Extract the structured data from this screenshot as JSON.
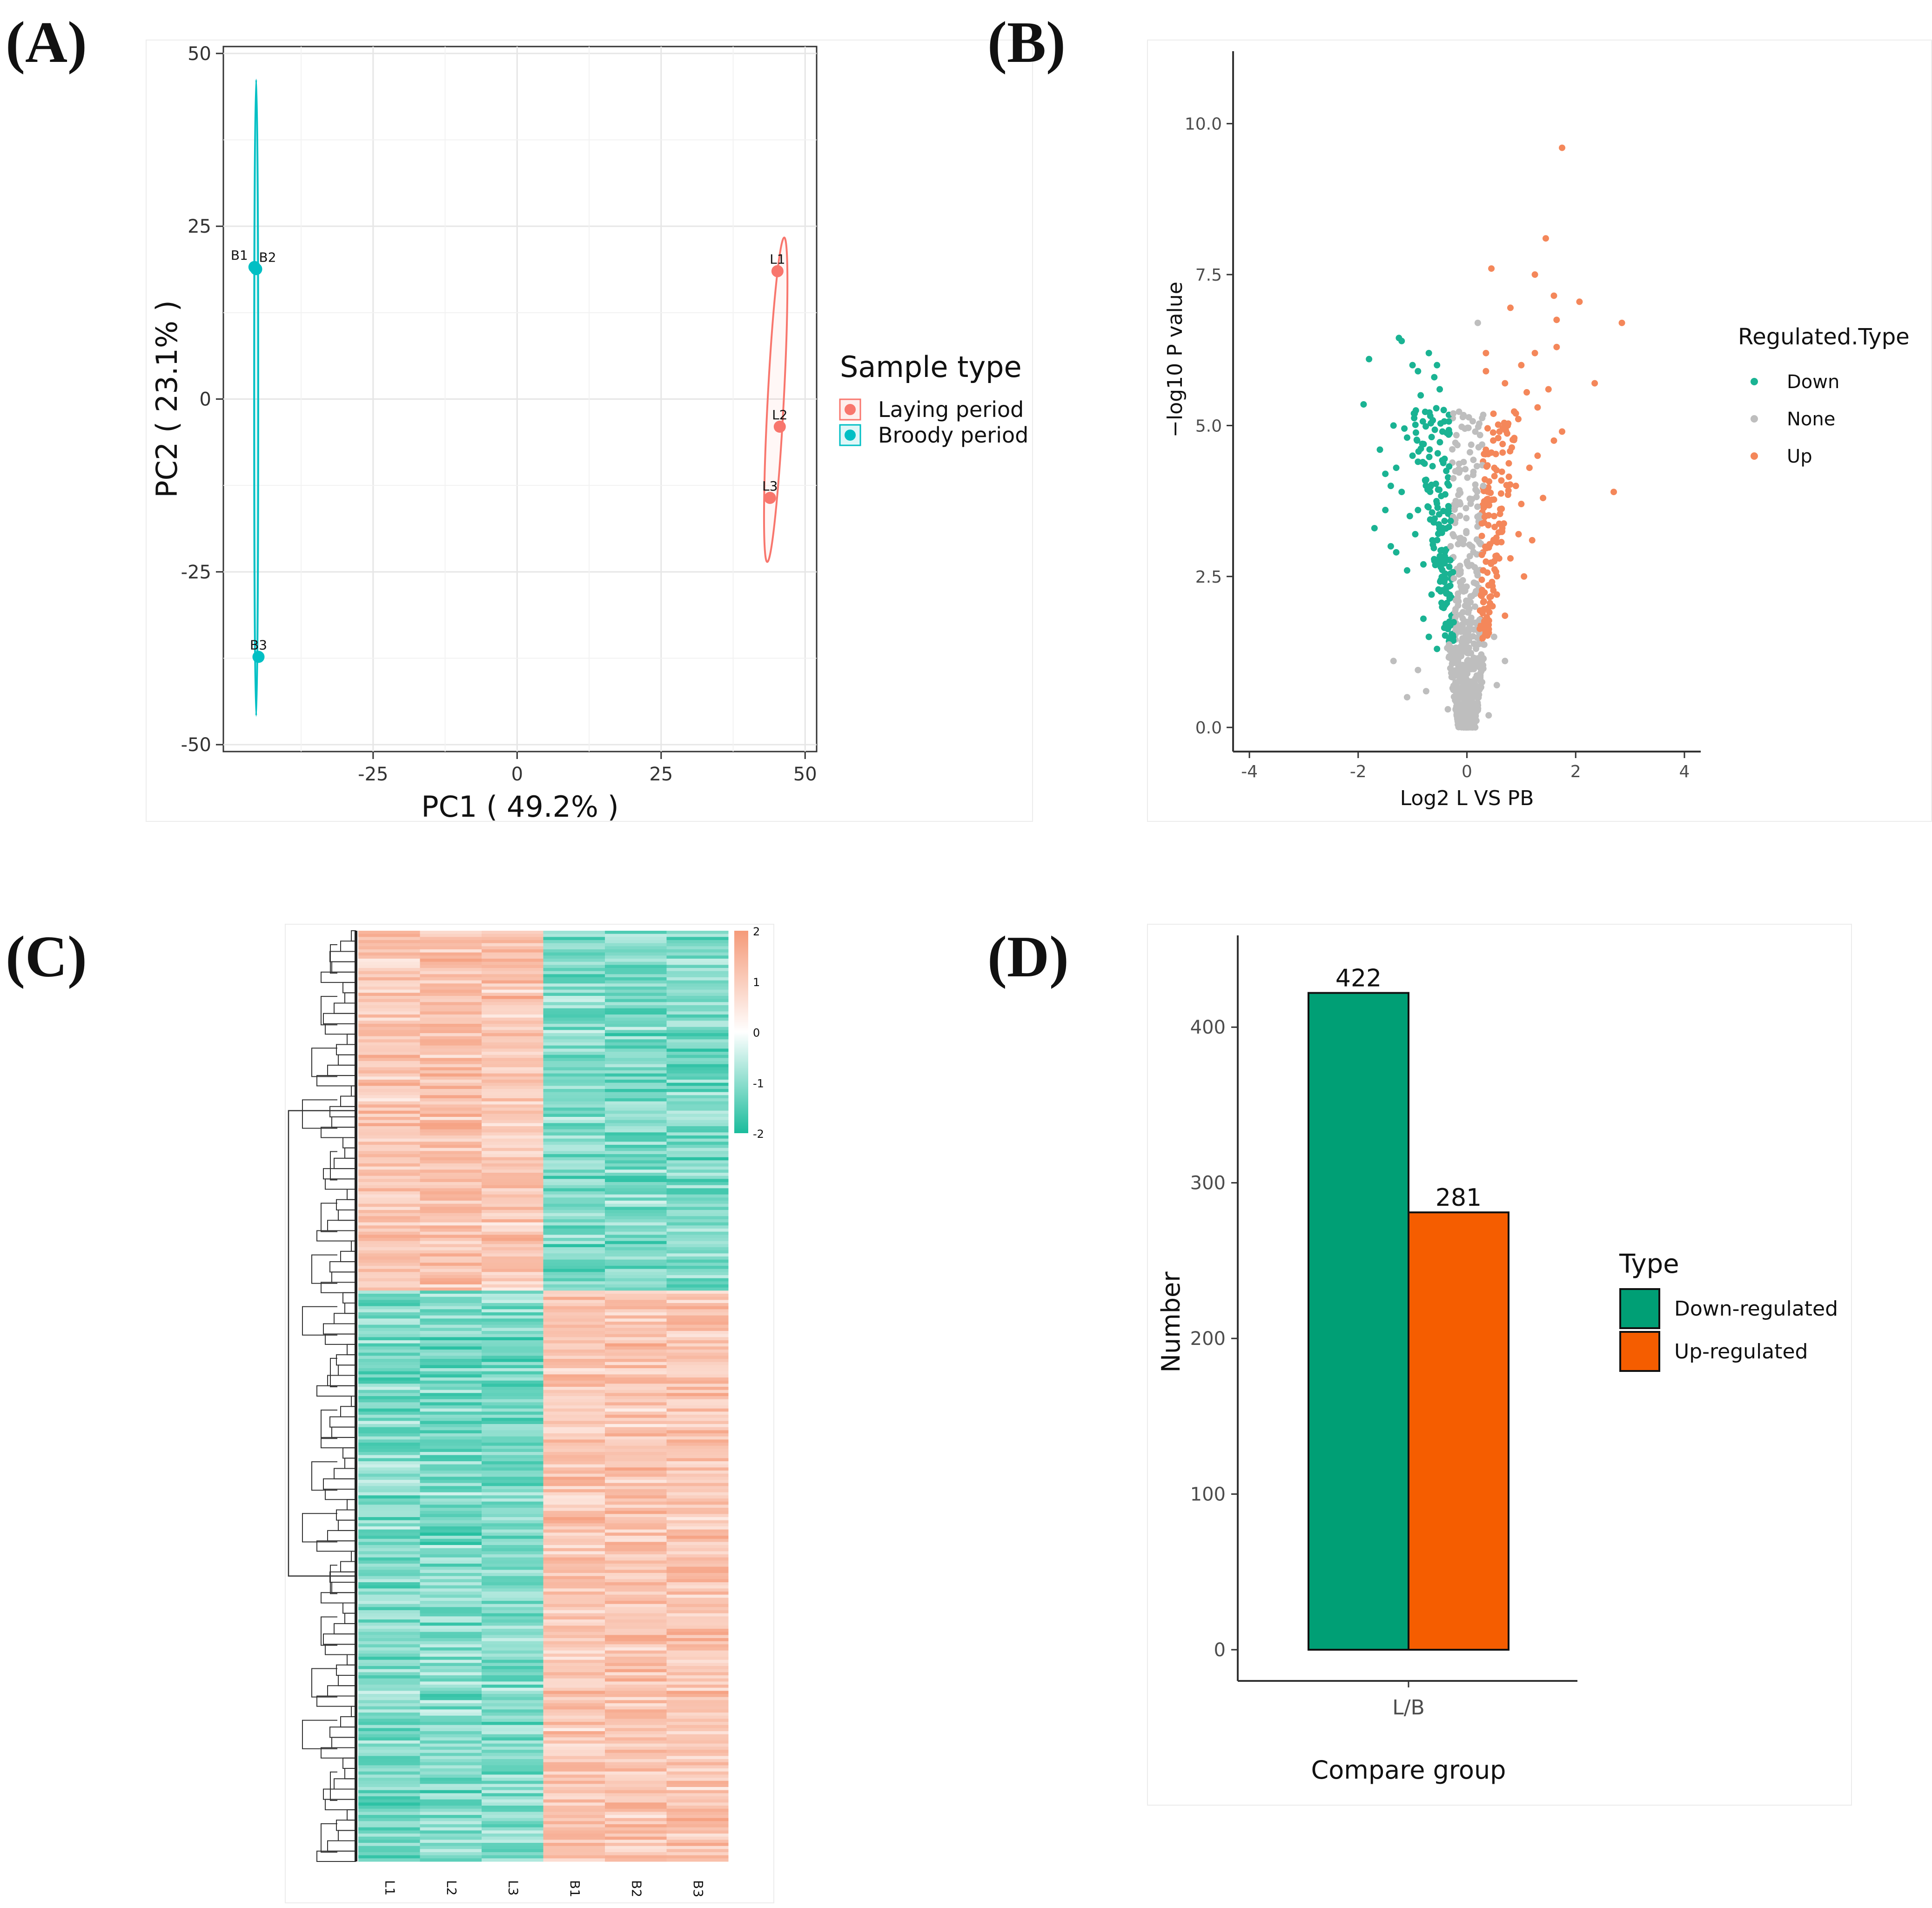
{
  "panels": {
    "a_label": "(A)",
    "b_label": "(B)",
    "c_label": "(C)",
    "d_label": "(D)"
  },
  "colors": {
    "laying": "#F8766D",
    "broody": "#00BFC4",
    "down": "#1AB393",
    "none": "#BEBEBE",
    "up": "#F4875A",
    "heat_high": "#F59A79",
    "heat_low": "#1ABC9C",
    "bar_down": "#009F75",
    "bar_up": "#F55D00"
  },
  "chart_data": [
    {
      "id": "pca",
      "type": "scatter",
      "title": "",
      "xlabel": "PC1 ( 49.2% )",
      "ylabel": "PC2 ( 23.1% )",
      "xlim": [
        -51,
        52
      ],
      "ylim": [
        -51,
        51
      ],
      "xticks": [
        -25,
        0,
        25,
        50
      ],
      "yticks": [
        -50,
        -25,
        0,
        25,
        50
      ],
      "grid": true,
      "legend": {
        "title": "Sample type",
        "position": "right",
        "entries": [
          "Laying period",
          "Broody period"
        ]
      },
      "series": [
        {
          "name": "Laying period",
          "points": [
            {
              "label": "L1",
              "x": 45.2,
              "y": 18.5
            },
            {
              "label": "L2",
              "x": 45.6,
              "y": -4.0
            },
            {
              "label": "L3",
              "x": 43.9,
              "y": -14.3
            }
          ],
          "ellipse": {
            "cx": 44.9,
            "cy": -0.1,
            "rx": 1.4,
            "ry": 23.5
          }
        },
        {
          "name": "Broody period",
          "points": [
            {
              "label": "B1",
              "x": -45.6,
              "y": 19.1
            },
            {
              "label": "B2",
              "x": -45.3,
              "y": 18.8
            },
            {
              "label": "B3",
              "x": -44.9,
              "y": -37.3
            }
          ],
          "ellipse": {
            "cx": -45.3,
            "cy": 0.2,
            "rx": 0.35,
            "ry": 46.0
          }
        }
      ]
    },
    {
      "id": "volcano",
      "type": "scatter",
      "xlabel": "Log2 L VS PB",
      "ylabel": "−log10 P value",
      "xlim": [
        -4.3,
        4.3
      ],
      "ylim": [
        -0.4,
        11.2
      ],
      "xticks": [
        -4,
        -2,
        0,
        2,
        4
      ],
      "yticks": [
        0.0,
        2.5,
        5.0,
        7.5,
        10.0
      ],
      "ytick_labels": [
        "0.0",
        "2.5",
        "5.0",
        "7.5",
        "10.0"
      ],
      "grid": false,
      "legend": {
        "title": "Regulated.Type",
        "position": "right",
        "entries": [
          "Down",
          "None",
          "Up"
        ]
      },
      "series": [
        {
          "name": "Down",
          "points": [
            [
              -1.8,
              6.1
            ],
            [
              -1.25,
              6.45
            ],
            [
              -1.2,
              6.4
            ],
            [
              -1.0,
              6.0
            ],
            [
              -1.9,
              5.35
            ],
            [
              -1.6,
              4.6
            ],
            [
              -1.7,
              3.3
            ],
            [
              -1.3,
              4.3
            ],
            [
              -1.4,
              3.0
            ],
            [
              -1.5,
              3.6
            ],
            [
              -1.1,
              4.8
            ],
            [
              -0.9,
              5.9
            ],
            [
              -0.85,
              5.5
            ],
            [
              -1.2,
              3.9
            ],
            [
              -0.95,
              3.2
            ],
            [
              -1.1,
              2.6
            ],
            [
              -0.8,
              1.8
            ],
            [
              -0.7,
              1.5
            ],
            [
              -1.3,
              2.9
            ],
            [
              -1.0,
              4.5
            ],
            [
              -0.75,
              4.1
            ],
            [
              -0.9,
              3.6
            ],
            [
              -1.05,
              3.5
            ],
            [
              -0.6,
              5.8
            ],
            [
              -0.5,
              5.6
            ],
            [
              -1.4,
              4.0
            ],
            [
              -1.15,
              4.95
            ],
            [
              -0.65,
              2.2
            ],
            [
              -0.55,
              1.3
            ],
            [
              -0.8,
              2.7
            ],
            [
              -1.35,
              5.0
            ],
            [
              -1.5,
              4.2
            ],
            [
              -0.45,
              4.9
            ],
            [
              -0.7,
              6.2
            ],
            [
              -0.55,
              6.0
            ],
            [
              -0.9,
              4.4
            ]
          ]
        },
        {
          "name": "Up",
          "points": [
            [
              1.75,
              9.6
            ],
            [
              1.45,
              8.1
            ],
            [
              1.25,
              7.5
            ],
            [
              1.6,
              7.15
            ],
            [
              2.07,
              7.05
            ],
            [
              2.85,
              6.7
            ],
            [
              0.45,
              7.6
            ],
            [
              1.65,
              6.75
            ],
            [
              1.25,
              6.2
            ],
            [
              0.8,
              6.95
            ],
            [
              1.65,
              6.3
            ],
            [
              2.35,
              5.7
            ],
            [
              1.0,
              6.0
            ],
            [
              1.1,
              5.55
            ],
            [
              0.7,
              5.7
            ],
            [
              1.3,
              5.3
            ],
            [
              1.6,
              4.75
            ],
            [
              1.75,
              4.9
            ],
            [
              2.7,
              3.9
            ],
            [
              1.3,
              4.5
            ],
            [
              0.9,
              4.0
            ],
            [
              1.0,
              3.7
            ],
            [
              1.2,
              3.1
            ],
            [
              0.6,
              4.9
            ],
            [
              0.5,
              3.5
            ],
            [
              0.8,
              2.8
            ],
            [
              1.05,
              2.5
            ],
            [
              0.55,
              2.2
            ],
            [
              0.7,
              1.85
            ],
            [
              1.4,
              3.8
            ],
            [
              0.35,
              5.9
            ],
            [
              0.35,
              6.2
            ],
            [
              0.9,
              5.2
            ],
            [
              1.15,
              4.3
            ],
            [
              0.65,
              3.3
            ],
            [
              0.75,
              5.0
            ],
            [
              1.5,
              5.6
            ],
            [
              0.3,
              2.6
            ],
            [
              0.4,
              1.7
            ],
            [
              0.95,
              3.2
            ]
          ]
        },
        {
          "name": "None",
          "points": [
            [
              -1.35,
              1.1
            ],
            [
              -1.1,
              0.5
            ],
            [
              -0.9,
              0.95
            ],
            [
              -0.75,
              0.6
            ],
            [
              0.7,
              1.1
            ],
            [
              0.5,
              1.5
            ],
            [
              0.2,
              6.7
            ],
            [
              0.55,
              0.7
            ],
            [
              0.3,
              4.0
            ],
            [
              -0.25,
              5.2
            ],
            [
              -0.3,
              3.0
            ],
            [
              0.15,
              2.0
            ],
            [
              -0.15,
              1.2
            ],
            [
              0.25,
              0.9
            ],
            [
              -0.35,
              0.3
            ],
            [
              0.4,
              0.2
            ]
          ]
        }
      ]
    },
    {
      "id": "heatmap",
      "type": "heatmap",
      "columns": [
        "L1",
        "L2",
        "L3",
        "B1",
        "B2",
        "B3"
      ],
      "rows": 300,
      "split_fraction": 0.385,
      "scale": {
        "min": -2,
        "max": 2,
        "ticks": [
          "2",
          "1",
          "0",
          "-1",
          "-2"
        ]
      }
    },
    {
      "id": "bars",
      "type": "bar",
      "xlabel": "Compare group",
      "ylabel": "Number",
      "categories": [
        "L/B"
      ],
      "series": [
        {
          "name": "Down-regulated",
          "values": [
            422
          ]
        },
        {
          "name": "Up-regulated",
          "values": [
            281
          ]
        }
      ],
      "data_labels": [
        "422",
        "281"
      ],
      "ylim": [
        0,
        450
      ],
      "yticks": [
        0,
        100,
        200,
        300,
        400
      ],
      "grid": false,
      "legend": {
        "title": "Type",
        "position": "right",
        "entries": [
          "Down-regulated",
          "Up-regulated"
        ]
      }
    }
  ]
}
